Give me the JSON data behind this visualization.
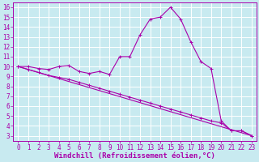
{
  "bg_color": "#c8eaf0",
  "grid_color": "#ffffff",
  "line_color": "#aa00aa",
  "xlabel": "Windchill (Refroidissement éolien,°C)",
  "xlim": [
    -0.5,
    23.5
  ],
  "ylim": [
    2.5,
    16.5
  ],
  "xticks": [
    0,
    1,
    2,
    3,
    4,
    5,
    6,
    7,
    8,
    9,
    10,
    11,
    12,
    13,
    14,
    15,
    16,
    17,
    18,
    19,
    20,
    21,
    22,
    23
  ],
  "yticks": [
    3,
    4,
    5,
    6,
    7,
    8,
    9,
    10,
    11,
    12,
    13,
    14,
    15,
    16
  ],
  "line1_x": [
    0,
    1,
    2,
    3,
    4,
    5,
    6,
    7,
    8,
    9,
    10,
    11,
    12,
    13,
    14,
    15,
    16,
    17,
    18,
    19,
    20,
    21,
    22,
    23
  ],
  "line1_y": [
    10,
    10,
    9.8,
    9.7,
    10.0,
    10.1,
    9.5,
    9.3,
    9.5,
    9.2,
    11.0,
    11.0,
    13.2,
    14.8,
    15.0,
    16.0,
    14.8,
    12.5,
    10.5,
    9.8,
    4.5,
    3.5,
    3.5,
    3.0
  ],
  "line2_x": [
    0,
    1,
    2,
    3,
    4,
    5,
    6,
    7,
    8,
    9,
    10,
    11,
    12,
    13,
    14,
    15,
    16,
    17,
    18,
    19,
    20,
    21,
    22,
    23
  ],
  "line2_y": [
    10.0,
    9.7,
    9.4,
    9.1,
    8.9,
    8.7,
    8.4,
    8.1,
    7.8,
    7.5,
    7.2,
    6.9,
    6.6,
    6.3,
    6.0,
    5.7,
    5.4,
    5.1,
    4.8,
    4.5,
    4.3,
    3.5,
    3.5,
    3.0
  ],
  "line3_x": [
    0,
    23
  ],
  "line3_y": [
    10.0,
    3.0
  ],
  "tick_label_size": 5.5,
  "xlabel_font_size": 6.5
}
